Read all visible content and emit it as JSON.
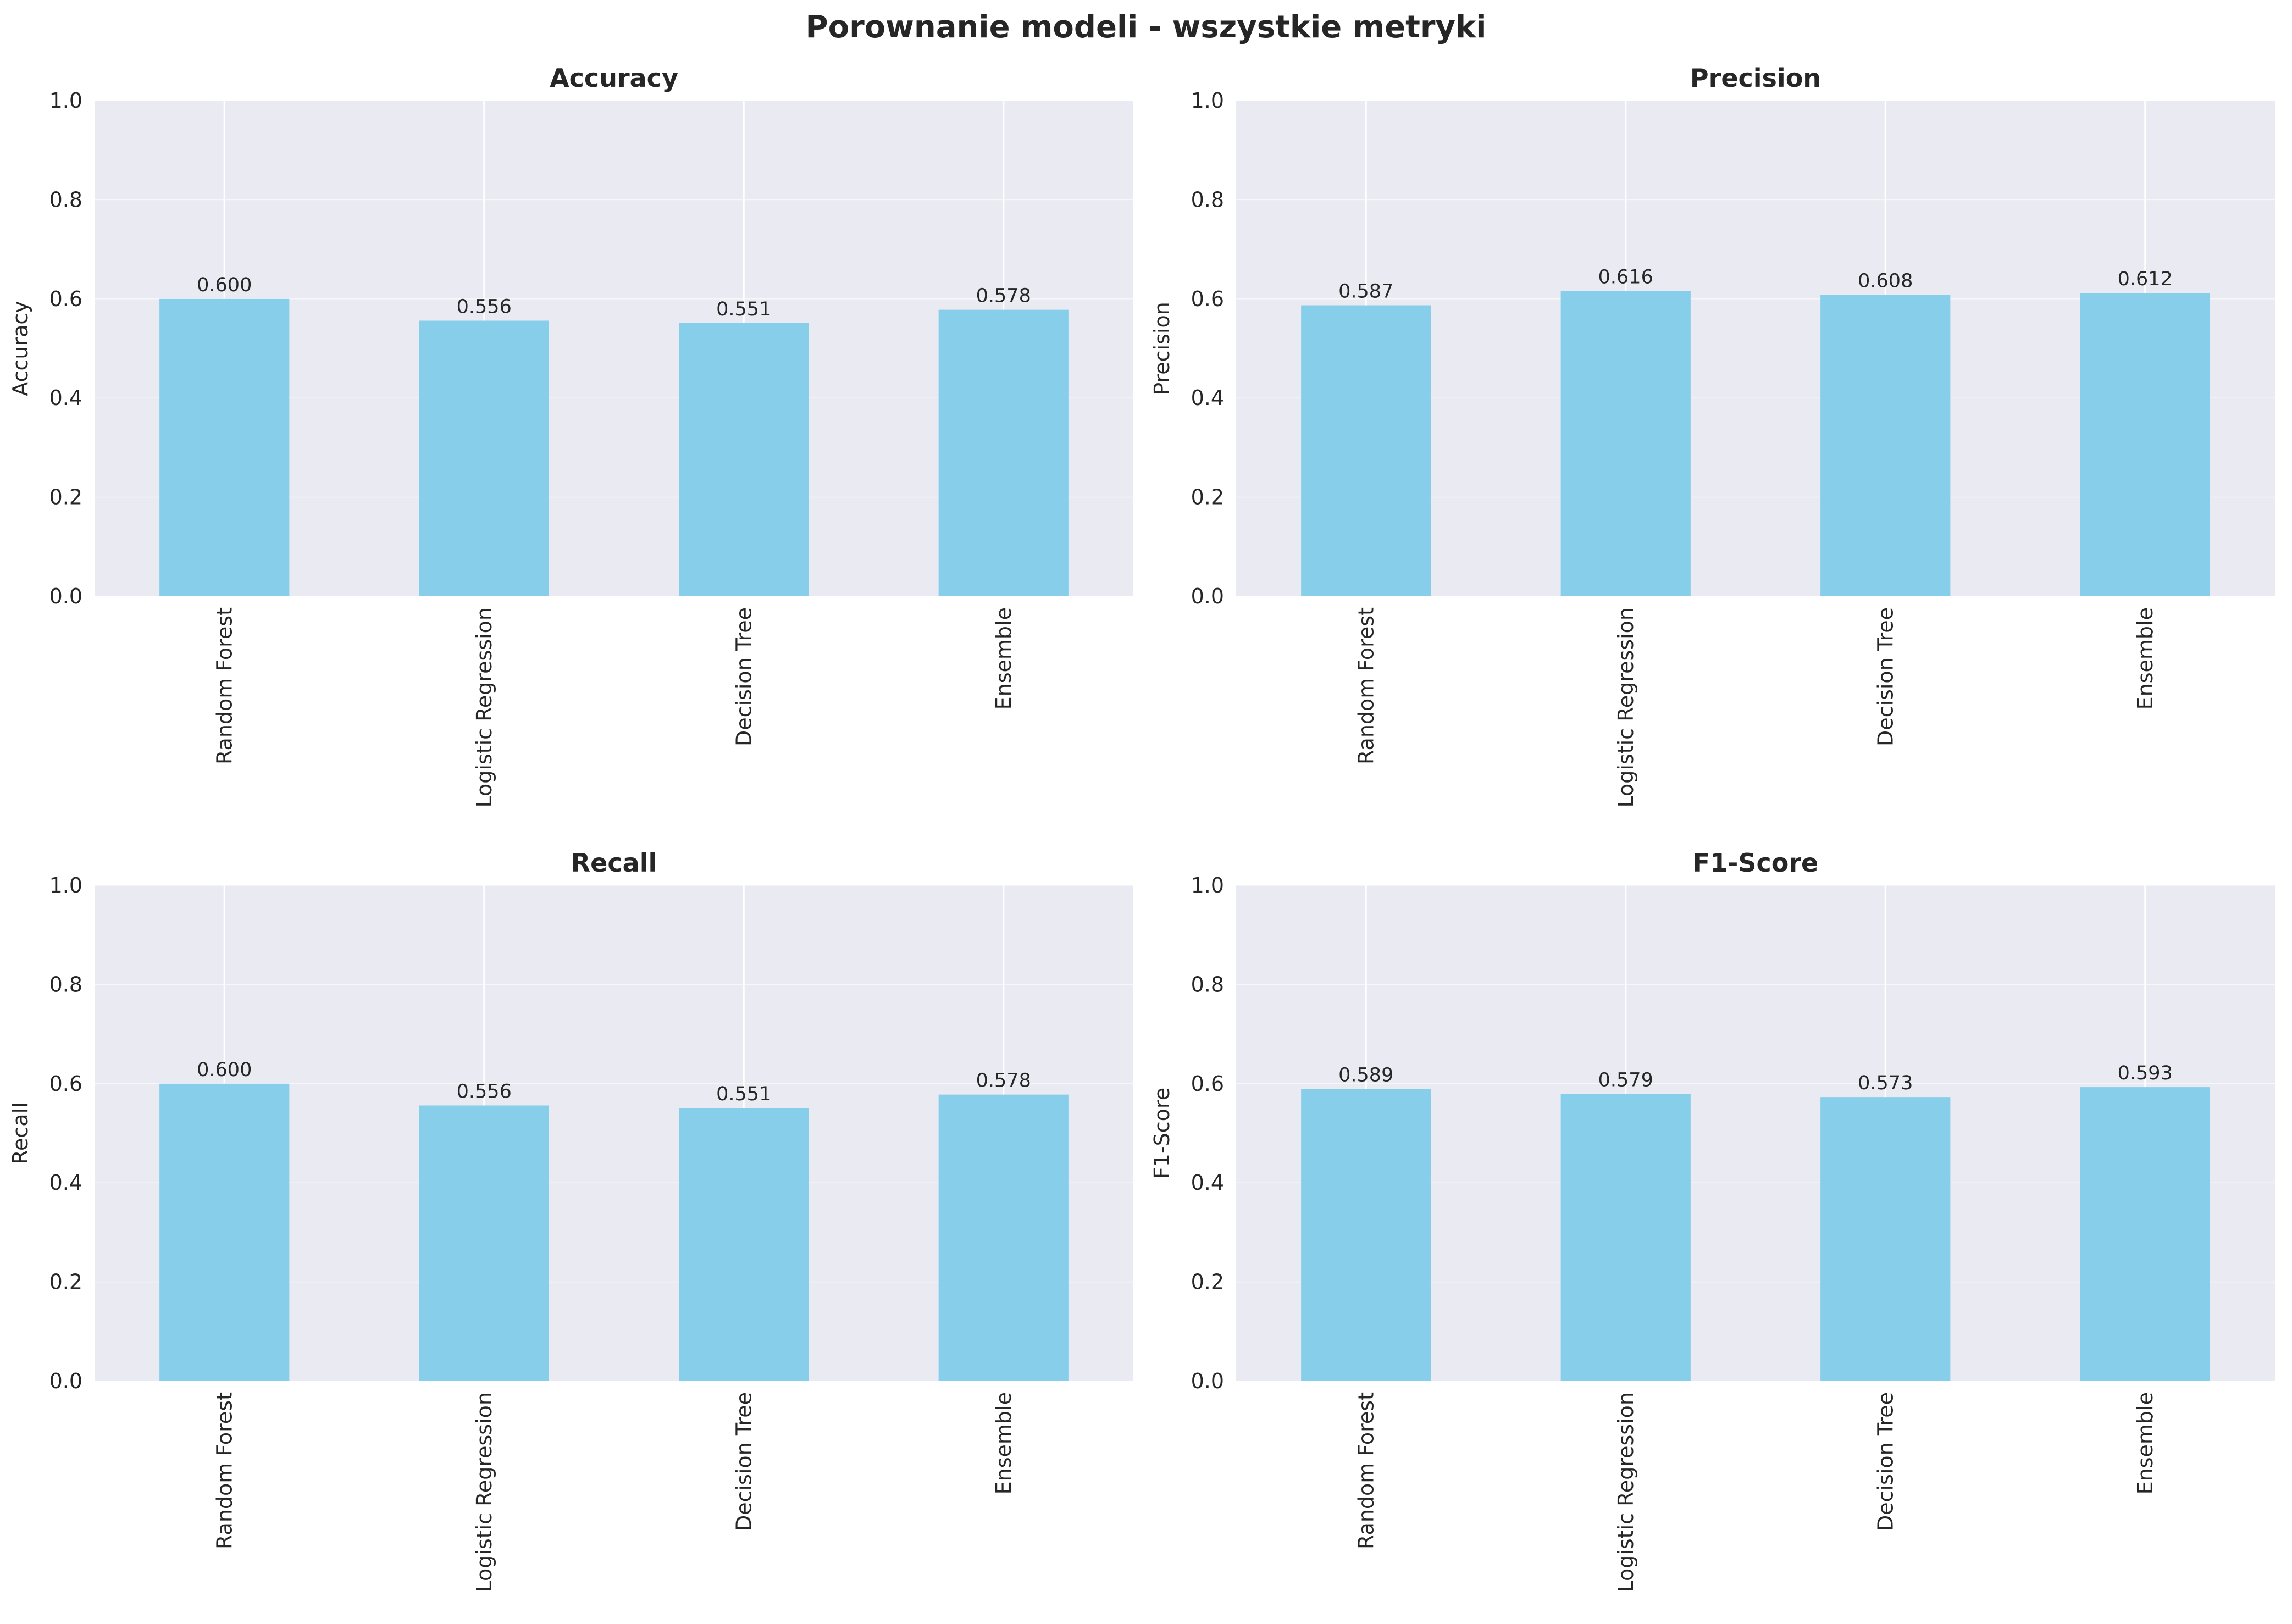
{
  "figure_title": "Porownanie modeli - wszystkie metryki",
  "colors": {
    "bar": "#87ceeb",
    "plot_background": "#eaeaf2",
    "grid": "#ffffff",
    "text": "#262626"
  },
  "chart_data": [
    {
      "type": "bar",
      "title": "Accuracy",
      "ylabel": "Accuracy",
      "xlabel": "",
      "categories": [
        "Random Forest",
        "Logistic Regression",
        "Decision Tree",
        "Ensemble"
      ],
      "values": [
        0.6,
        0.556,
        0.551,
        0.578
      ],
      "data_labels": [
        "0.600",
        "0.556",
        "0.551",
        "0.578"
      ],
      "ylim": [
        0,
        1.0
      ],
      "yticks": [
        "0.0",
        "0.2",
        "0.4",
        "0.6",
        "0.8",
        "1.0"
      ],
      "grid": true,
      "legend": false
    },
    {
      "type": "bar",
      "title": "Precision",
      "ylabel": "Precision",
      "xlabel": "",
      "categories": [
        "Random Forest",
        "Logistic Regression",
        "Decision Tree",
        "Ensemble"
      ],
      "values": [
        0.587,
        0.616,
        0.608,
        0.612
      ],
      "data_labels": [
        "0.587",
        "0.616",
        "0.608",
        "0.612"
      ],
      "ylim": [
        0,
        1.0
      ],
      "yticks": [
        "0.0",
        "0.2",
        "0.4",
        "0.6",
        "0.8",
        "1.0"
      ],
      "grid": true,
      "legend": false
    },
    {
      "type": "bar",
      "title": "Recall",
      "ylabel": "Recall",
      "xlabel": "",
      "categories": [
        "Random Forest",
        "Logistic Regression",
        "Decision Tree",
        "Ensemble"
      ],
      "values": [
        0.6,
        0.556,
        0.551,
        0.578
      ],
      "data_labels": [
        "0.600",
        "0.556",
        "0.551",
        "0.578"
      ],
      "ylim": [
        0,
        1.0
      ],
      "yticks": [
        "0.0",
        "0.2",
        "0.4",
        "0.6",
        "0.8",
        "1.0"
      ],
      "grid": true,
      "legend": false
    },
    {
      "type": "bar",
      "title": "F1-Score",
      "ylabel": "F1-Score",
      "xlabel": "",
      "categories": [
        "Random Forest",
        "Logistic Regression",
        "Decision Tree",
        "Ensemble"
      ],
      "values": [
        0.589,
        0.579,
        0.573,
        0.593
      ],
      "data_labels": [
        "0.589",
        "0.579",
        "0.573",
        "0.593"
      ],
      "ylim": [
        0,
        1.0
      ],
      "yticks": [
        "0.0",
        "0.2",
        "0.4",
        "0.6",
        "0.8",
        "1.0"
      ],
      "grid": true,
      "legend": false
    }
  ]
}
